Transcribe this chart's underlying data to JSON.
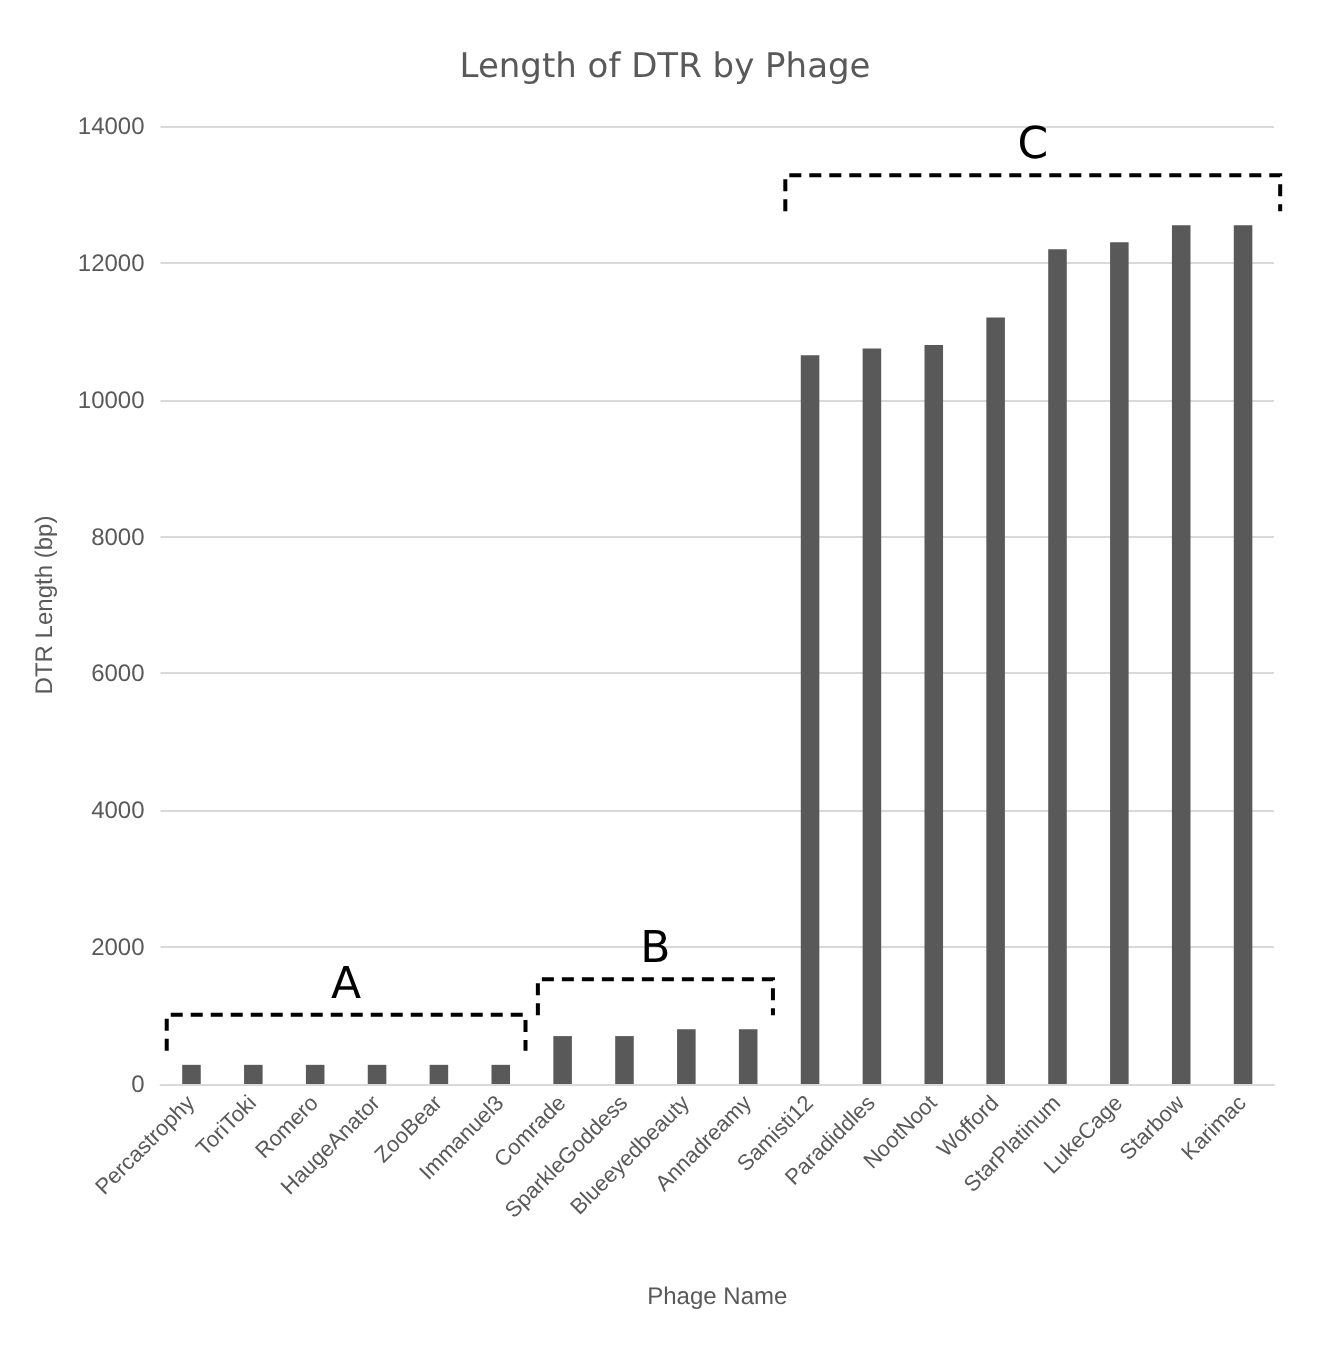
{
  "chart_data": {
    "type": "bar",
    "title": "Length of DTR by Phage",
    "xlabel": "Phage Name",
    "ylabel": "DTR Length (bp)",
    "categories": [
      "Percastrophy",
      "ToriToki",
      "Romero",
      "HaugeAnator",
      "ZooBear",
      "Immanuel3",
      "Comrade",
      "SparkleGoddess",
      "Blueeyedbeauty",
      "Annadreamy",
      "Samisti12",
      "Paradiddles",
      "NootNoot",
      "Wofford",
      "StarPlatinum",
      "LukeCage",
      "Starbow",
      "Karimac"
    ],
    "values": [
      280,
      280,
      280,
      280,
      280,
      280,
      700,
      700,
      800,
      800,
      10650,
      10750,
      10800,
      11200,
      12200,
      12300,
      12550,
      12550
    ],
    "color": "#595959",
    "ylim": [
      0,
      14000
    ],
    "yticks": [
      0,
      2000,
      4000,
      6000,
      8000,
      10000,
      12000,
      14000
    ],
    "grid": "y",
    "annotations": [
      "A",
      "B",
      "C"
    ]
  }
}
